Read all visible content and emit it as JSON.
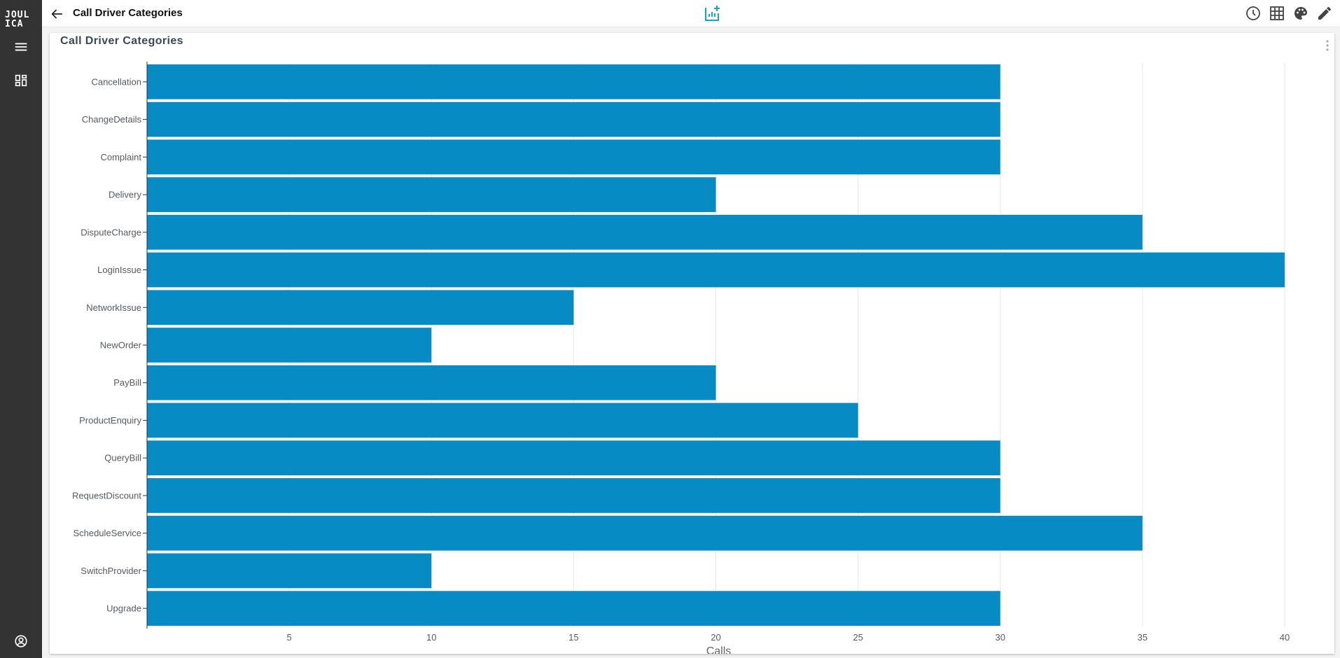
{
  "app": {
    "logo_line1": "JOUL",
    "logo_line2": "ICA",
    "title": "Call Driver Categories"
  },
  "sidebar": {
    "items": [
      {
        "icon": "menu-icon"
      },
      {
        "icon": "dashboard-icon"
      },
      {
        "icon": "user-account-icon"
      }
    ]
  },
  "toolbar": {
    "center_icon": "add-chart-icon",
    "right_icons": [
      "history-icon",
      "table-icon",
      "palette-icon",
      "edit-icon"
    ]
  },
  "card": {
    "title": "Call Driver Categories"
  },
  "colors": {
    "sidebar": "#333333",
    "bar": "#078bc4",
    "accent": "#17a2c8"
  },
  "chart_data": {
    "type": "bar",
    "orientation": "horizontal",
    "categories": [
      "Cancellation",
      "ChangeDetails",
      "Complaint",
      "Delivery",
      "DisputeCharge",
      "LoginIssue",
      "NetworkIssue",
      "NewOrder",
      "PayBill",
      "ProductEnquiry",
      "QueryBill",
      "RequestDiscount",
      "ScheduleService",
      "SwitchProvider",
      "Upgrade"
    ],
    "values": [
      30,
      30,
      30,
      20,
      35,
      40,
      15,
      10,
      20,
      25,
      30,
      30,
      35,
      10,
      30
    ],
    "xlabel": "Calls",
    "ylabel": "",
    "xticks": [
      5,
      10,
      15,
      20,
      25,
      30,
      35,
      40
    ],
    "xlim": [
      0,
      40
    ],
    "grid": "vertical"
  }
}
